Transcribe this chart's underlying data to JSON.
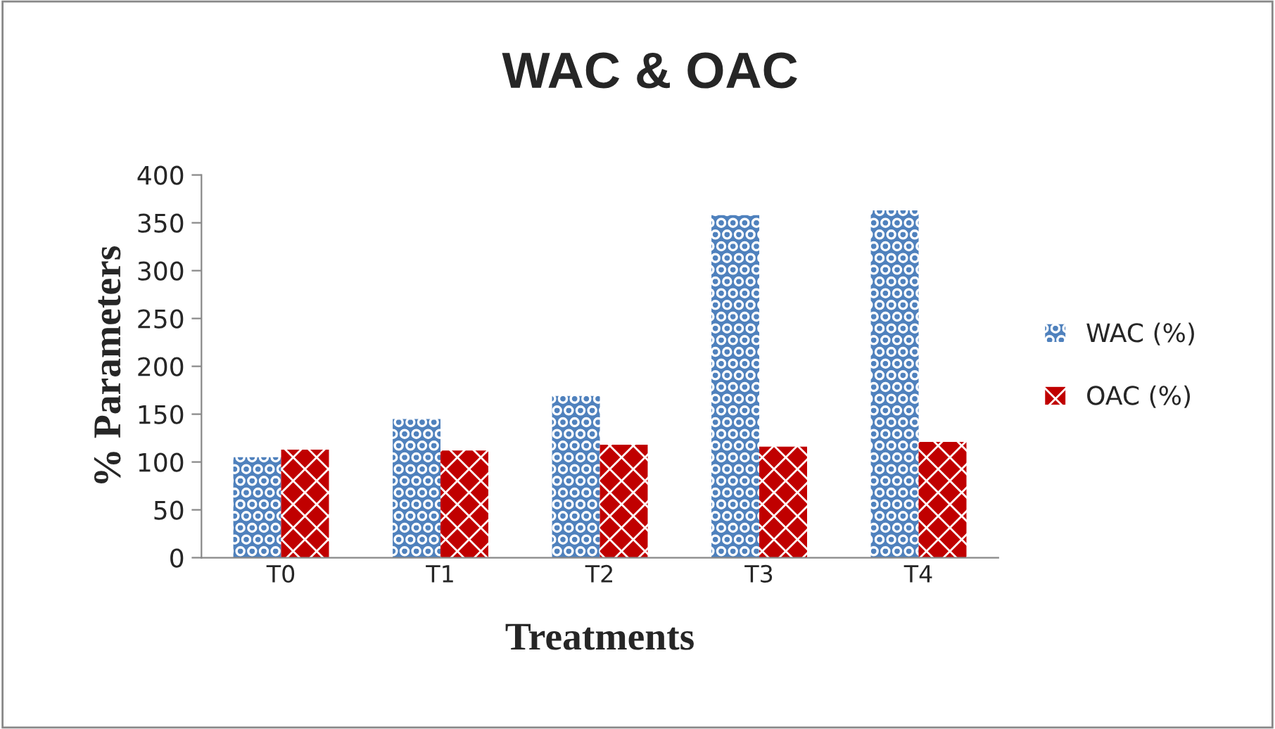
{
  "chart_data": {
    "type": "bar",
    "title": "WAC & OAC",
    "xlabel": "Treatments",
    "ylabel": "% Parameters",
    "categories": [
      "T0",
      "T1",
      "T2",
      "T3",
      "T4"
    ],
    "series": [
      {
        "name": "WAC (%)",
        "color": "#4f81bd",
        "values": [
          105,
          145,
          169,
          358,
          363
        ]
      },
      {
        "name": "OAC (%)",
        "color": "#c00000",
        "values": [
          113,
          112,
          118,
          116,
          121
        ]
      }
    ],
    "ylim": [
      0,
      400
    ],
    "yticks": [
      0,
      50,
      100,
      150,
      200,
      250,
      300,
      350,
      400
    ],
    "grid": false,
    "legend": "right"
  }
}
